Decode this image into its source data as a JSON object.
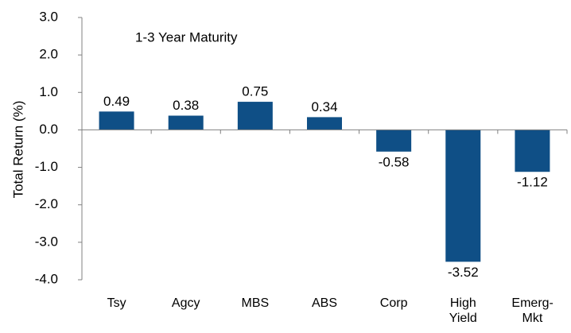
{
  "chart_data": {
    "type": "bar",
    "annotation": "1-3 Year Maturity",
    "y_label": "Total Return (%)",
    "categories": [
      "Tsy",
      "Agcy",
      "MBS",
      "ABS",
      "Corp",
      "High Yield",
      "Emerg-Mkt"
    ],
    "values": [
      0.49,
      0.38,
      0.75,
      0.34,
      -0.58,
      -3.52,
      -1.12
    ],
    "color": "#0f4f86",
    "ylim": [
      -4,
      3
    ],
    "yticks": [
      {
        "value": 3,
        "label": "3.0"
      },
      {
        "value": 2,
        "label": "2.0"
      },
      {
        "value": 1,
        "label": "1.0"
      },
      {
        "value": 0,
        "label": "0.0"
      },
      {
        "value": -1,
        "label": "-1.0"
      },
      {
        "value": -2,
        "label": "-2.0"
      },
      {
        "value": -3,
        "label": "-3.0"
      },
      {
        "value": -4,
        "label": "-4.0"
      }
    ],
    "grid": false
  }
}
